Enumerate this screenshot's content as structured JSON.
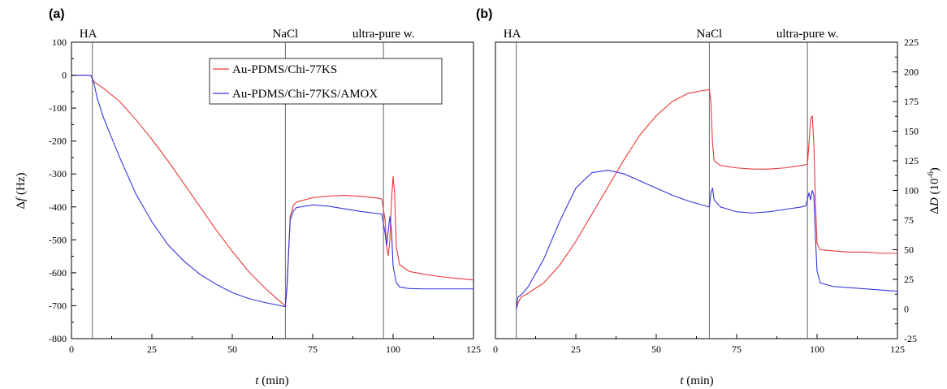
{
  "colors": {
    "series_red": "#e8383b",
    "series_blue": "#3535e0",
    "axis": "#000000",
    "event_line": "#555555"
  },
  "chart_data": [
    {
      "type": "line",
      "panel_label": "(a)",
      "xlabel_var": "t",
      "xlabel_unit": " (min)",
      "ylabel_prefix": "Δ",
      "ylabel_var": "f",
      "ylabel_unit": " (Hz)",
      "xlim": [
        0,
        125
      ],
      "ylim": [
        -800,
        100
      ],
      "xticks": [
        0,
        25,
        50,
        75,
        100,
        125
      ],
      "yticks": [
        100,
        0,
        -100,
        -200,
        -300,
        -400,
        -500,
        -600,
        -700,
        -800
      ],
      "y_axis_side": "left",
      "events": [
        {
          "x": 6.5,
          "label": "HA"
        },
        {
          "x": 66.5,
          "label": "NaCl"
        },
        {
          "x": 97,
          "label": "ultra-pure w."
        }
      ],
      "legend": {
        "position": "top-center",
        "entries": [
          "Au-PDMS/Chi-77KS",
          "Au-PDMS/Chi-77KS/AMOX"
        ]
      },
      "series": [
        {
          "name": "Au-PDMS/Chi-77KS",
          "color": "red",
          "points": [
            [
              0,
              0
            ],
            [
              6,
              0
            ],
            [
              7,
              -20
            ],
            [
              10,
              -40
            ],
            [
              15,
              -80
            ],
            [
              20,
              -135
            ],
            [
              25,
              -195
            ],
            [
              30,
              -260
            ],
            [
              35,
              -330
            ],
            [
              40,
              -400
            ],
            [
              45,
              -470
            ],
            [
              50,
              -535
            ],
            [
              55,
              -595
            ],
            [
              60,
              -645
            ],
            [
              64,
              -680
            ],
            [
              66.5,
              -700
            ],
            [
              67,
              -650
            ],
            [
              68,
              -430
            ],
            [
              69,
              -395
            ],
            [
              70,
              -385
            ],
            [
              75,
              -372
            ],
            [
              80,
              -367
            ],
            [
              85,
              -365
            ],
            [
              90,
              -368
            ],
            [
              95,
              -373
            ],
            [
              96.5,
              -376
            ],
            [
              97.5,
              -440
            ],
            [
              98,
              -520
            ],
            [
              98.5,
              -548
            ],
            [
              99,
              -500
            ],
            [
              99.5,
              -380
            ],
            [
              100,
              -308
            ],
            [
              100.5,
              -360
            ],
            [
              101,
              -520
            ],
            [
              102,
              -575
            ],
            [
              105,
              -596
            ],
            [
              110,
              -605
            ],
            [
              115,
              -612
            ],
            [
              120,
              -617
            ],
            [
              125,
              -622
            ]
          ]
        },
        {
          "name": "Au-PDMS/Chi-77KS/AMOX",
          "color": "blue",
          "points": [
            [
              0,
              0
            ],
            [
              6,
              0
            ],
            [
              7,
              -25
            ],
            [
              8,
              -70
            ],
            [
              10,
              -130
            ],
            [
              15,
              -250
            ],
            [
              20,
              -360
            ],
            [
              25,
              -445
            ],
            [
              30,
              -515
            ],
            [
              35,
              -565
            ],
            [
              40,
              -605
            ],
            [
              45,
              -635
            ],
            [
              50,
              -660
            ],
            [
              55,
              -678
            ],
            [
              60,
              -690
            ],
            [
              64,
              -698
            ],
            [
              66.5,
              -703
            ],
            [
              67,
              -640
            ],
            [
              68,
              -440
            ],
            [
              69,
              -412
            ],
            [
              70,
              -402
            ],
            [
              75,
              -394
            ],
            [
              80,
              -398
            ],
            [
              85,
              -406
            ],
            [
              90,
              -414
            ],
            [
              95,
              -420
            ],
            [
              96.5,
              -422
            ],
            [
              97.5,
              -480
            ],
            [
              98,
              -518
            ],
            [
              98.5,
              -470
            ],
            [
              99,
              -430
            ],
            [
              99.5,
              -470
            ],
            [
              100,
              -580
            ],
            [
              101,
              -630
            ],
            [
              102,
              -643
            ],
            [
              105,
              -648
            ],
            [
              110,
              -649
            ],
            [
              115,
              -649
            ],
            [
              120,
              -649
            ],
            [
              125,
              -649
            ]
          ]
        }
      ]
    },
    {
      "type": "line",
      "panel_label": "(b)",
      "xlabel_var": "t",
      "xlabel_unit": " (min)",
      "ylabel_prefix": "Δ",
      "ylabel_var": "D",
      "ylabel_unit": " (10",
      "ylabel_exp": "-6",
      "ylabel_close": ")",
      "xlim": [
        0,
        125
      ],
      "ylim": [
        -25,
        225
      ],
      "xticks": [
        0,
        25,
        50,
        75,
        100,
        125
      ],
      "yticks": [
        225,
        200,
        175,
        150,
        125,
        100,
        75,
        50,
        25,
        0,
        -25
      ],
      "y_axis_side": "right",
      "events": [
        {
          "x": 6.5,
          "label": "HA"
        },
        {
          "x": 66.5,
          "label": "NaCl"
        },
        {
          "x": 97,
          "label": "ultra-pure w."
        }
      ],
      "series": [
        {
          "name": "Au-PDMS/Chi-77KS",
          "color": "red",
          "points": [
            [
              6.5,
              0
            ],
            [
              7,
              5
            ],
            [
              8,
              10
            ],
            [
              10,
              13
            ],
            [
              15,
              22
            ],
            [
              20,
              37
            ],
            [
              25,
              57
            ],
            [
              30,
              80
            ],
            [
              35,
              103
            ],
            [
              40,
              126
            ],
            [
              45,
              147
            ],
            [
              50,
              163
            ],
            [
              55,
              175
            ],
            [
              60,
              182
            ],
            [
              64,
              184
            ],
            [
              66.5,
              185
            ],
            [
              67,
              175
            ],
            [
              67.5,
              140
            ],
            [
              68,
              125
            ],
            [
              70,
              121
            ],
            [
              75,
              119
            ],
            [
              80,
              118
            ],
            [
              85,
              118
            ],
            [
              90,
              119
            ],
            [
              95,
              121
            ],
            [
              97,
              122
            ],
            [
              97.5,
              140
            ],
            [
              98,
              160
            ],
            [
              98.5,
              163
            ],
            [
              99,
              140
            ],
            [
              99.5,
              90
            ],
            [
              100,
              55
            ],
            [
              101,
              50
            ],
            [
              105,
              49
            ],
            [
              110,
              48
            ],
            [
              115,
              48
            ],
            [
              120,
              47
            ],
            [
              125,
              47
            ]
          ]
        },
        {
          "name": "Au-PDMS/Chi-77KS/AMOX",
          "color": "blue",
          "points": [
            [
              6.5,
              0
            ],
            [
              7,
              10
            ],
            [
              8,
              12
            ],
            [
              10,
              18
            ],
            [
              15,
              42
            ],
            [
              20,
              74
            ],
            [
              25,
              102
            ],
            [
              30,
              115
            ],
            [
              35,
              117
            ],
            [
              40,
              114
            ],
            [
              45,
              108
            ],
            [
              50,
              102
            ],
            [
              55,
              96
            ],
            [
              60,
              91
            ],
            [
              64,
              88
            ],
            [
              66.5,
              86
            ],
            [
              67,
              98
            ],
            [
              67.5,
              102
            ],
            [
              68,
              92
            ],
            [
              70,
              86
            ],
            [
              75,
              82
            ],
            [
              80,
              81
            ],
            [
              85,
              82
            ],
            [
              90,
              84
            ],
            [
              95,
              86
            ],
            [
              96.5,
              87
            ],
            [
              97.5,
              98
            ],
            [
              98,
              92
            ],
            [
              98.5,
              100
            ],
            [
              99,
              96
            ],
            [
              99.5,
              60
            ],
            [
              100,
              32
            ],
            [
              101,
              22
            ],
            [
              105,
              19
            ],
            [
              110,
              18
            ],
            [
              115,
              17
            ],
            [
              120,
              16
            ],
            [
              125,
              15
            ]
          ]
        }
      ]
    }
  ]
}
